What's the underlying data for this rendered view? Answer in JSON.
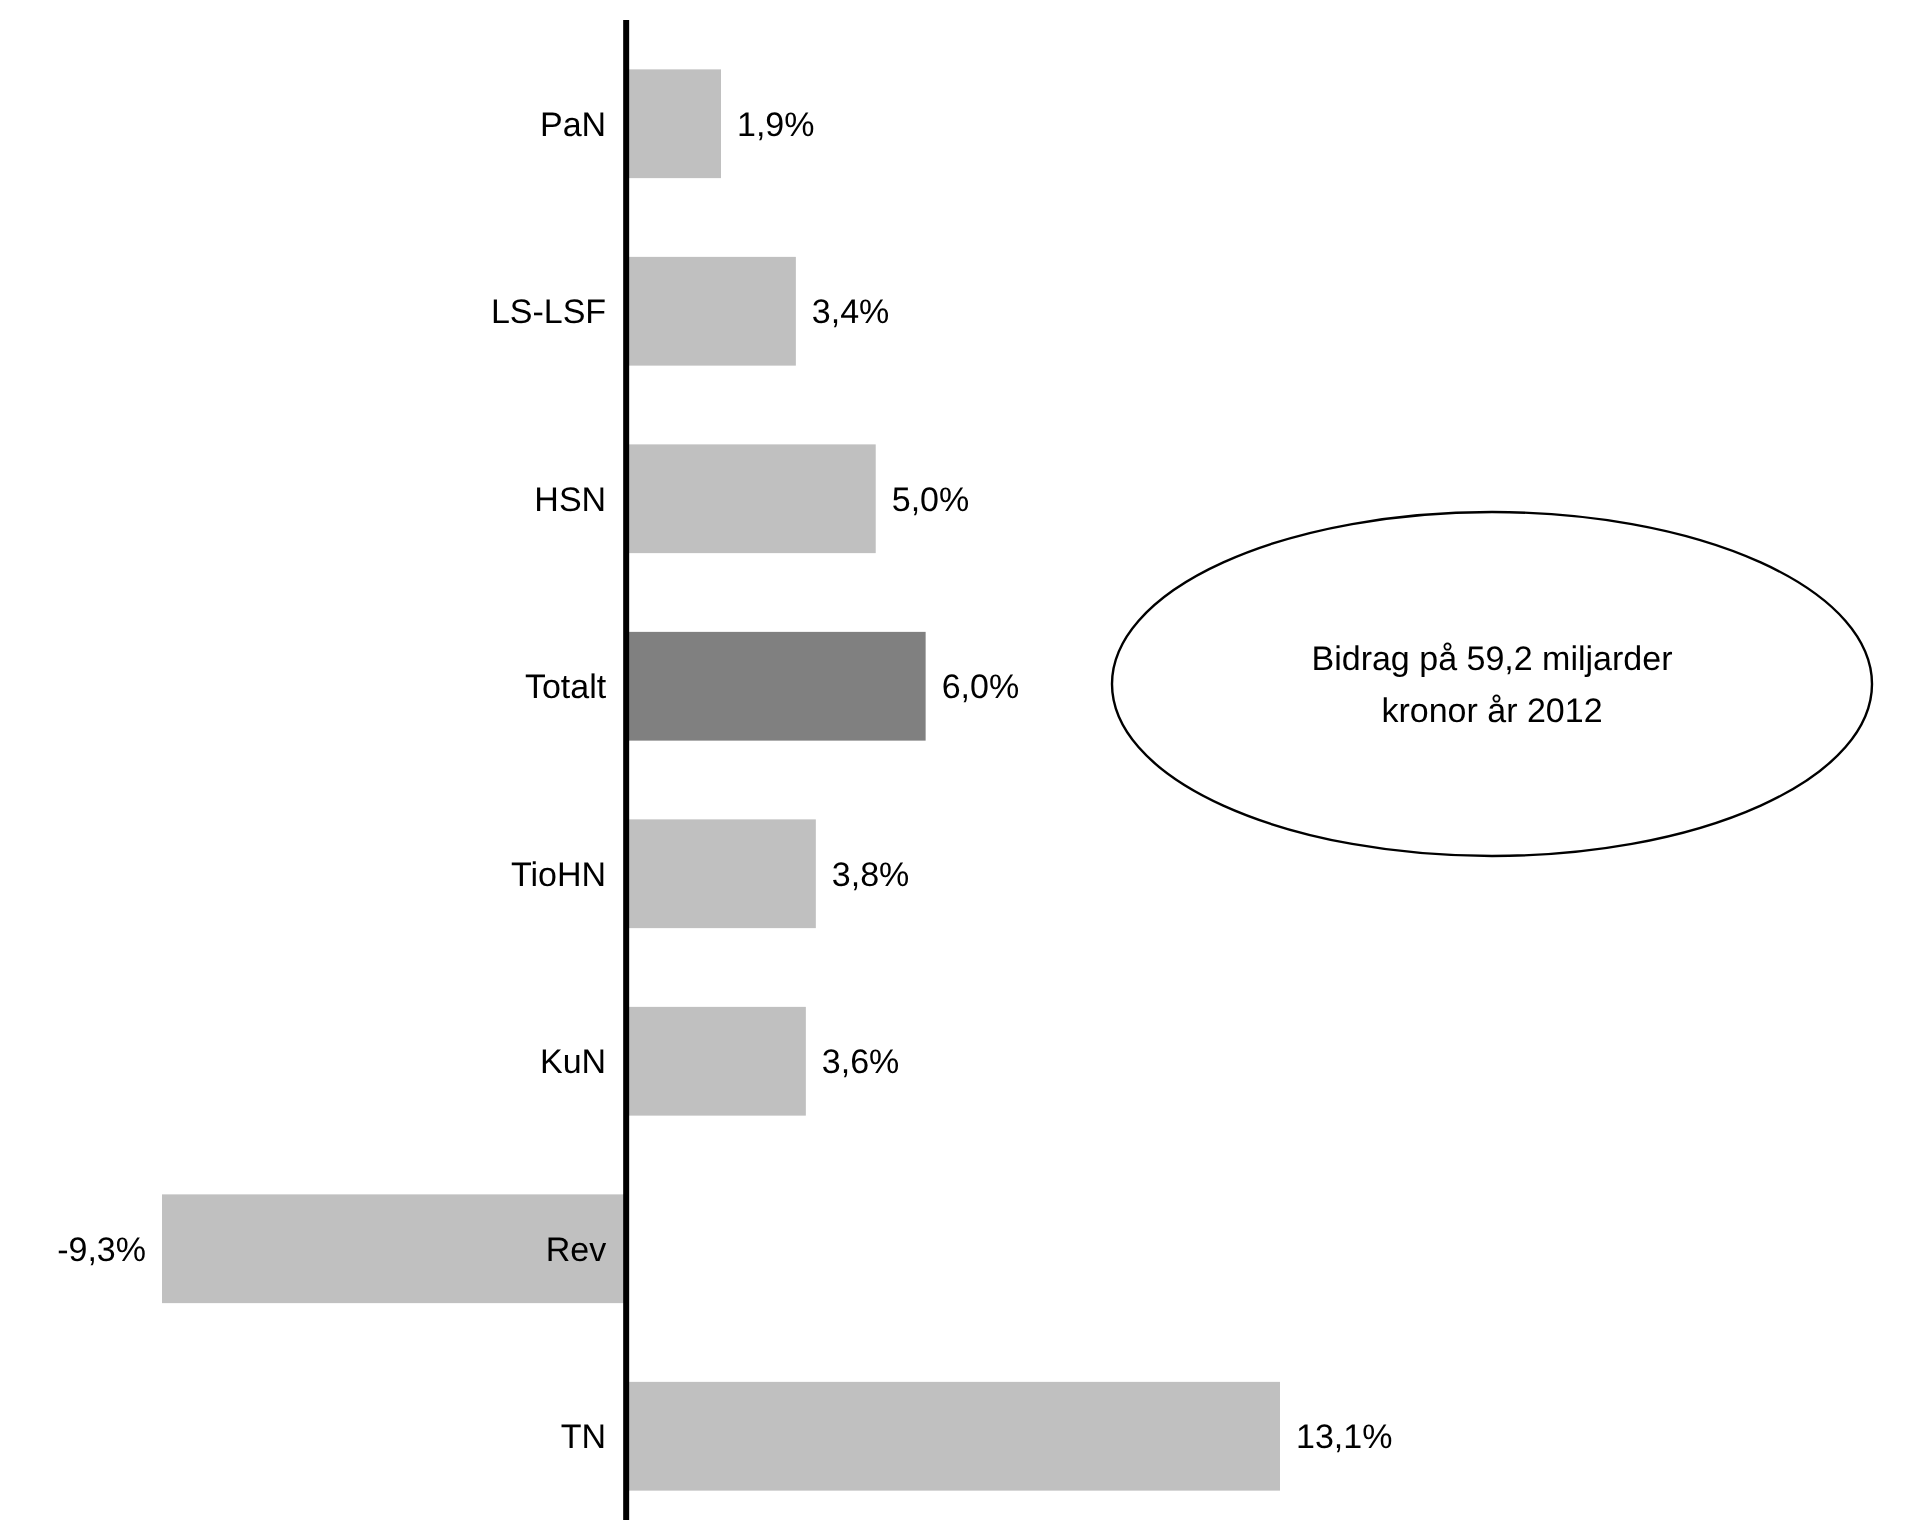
{
  "chart_data": {
    "type": "bar",
    "orientation": "horizontal",
    "categories": [
      "PaN",
      "LS-LSF",
      "HSN",
      "Totalt",
      "TioHN",
      "KuN",
      "Rev",
      "TN"
    ],
    "values": [
      1.9,
      3.4,
      5.0,
      6.0,
      3.8,
      3.6,
      -9.3,
      13.1
    ],
    "colors": [
      "#c0c0c0",
      "#c0c0c0",
      "#c0c0c0",
      "#808080",
      "#c0c0c0",
      "#c0c0c0",
      "#c0c0c0",
      "#c0c0c0"
    ],
    "value_labels": [
      "1,9%",
      "3,4%",
      "5,0%",
      "6,0%",
      "3,8%",
      "3,6%",
      "-9,3%",
      "13,1%"
    ],
    "annotations": [
      "Bidrag på 59,2 miljarder kronor år 2012"
    ]
  }
}
